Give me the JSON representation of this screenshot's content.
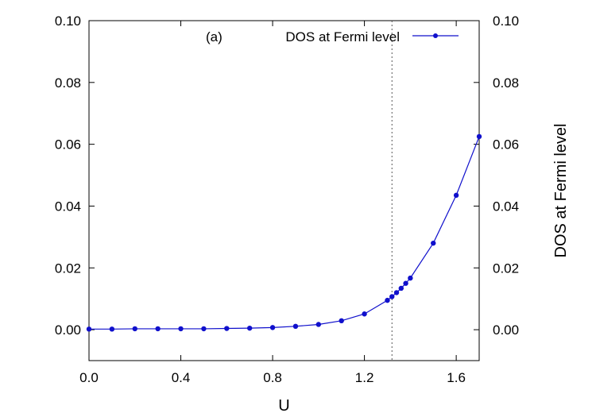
{
  "chart_data": {
    "type": "line",
    "panel_label": "(a)",
    "xlabel": "U",
    "ylabel_right": "DOS at Fermi level",
    "xlim": [
      0.0,
      1.7
    ],
    "ylim": [
      -0.01,
      0.1
    ],
    "x_ticks": [
      0.0,
      0.4,
      0.8,
      1.2,
      1.6
    ],
    "x_tick_labels": [
      "0.0",
      "0.4",
      "0.8",
      "1.2",
      "1.6"
    ],
    "y_ticks": [
      0.0,
      0.02,
      0.04,
      0.06,
      0.08,
      0.1
    ],
    "y_tick_labels": [
      "0.00",
      "0.02",
      "0.04",
      "0.06",
      "0.08",
      "0.10"
    ],
    "grid": false,
    "legend_position": "top-right",
    "reference_line": {
      "axis": "x",
      "value": 1.32,
      "style": "dotted"
    },
    "series": [
      {
        "name": "DOS at Fermi level",
        "color": "#1010cc",
        "marker": "circle",
        "x": [
          0.0,
          0.1,
          0.2,
          0.3,
          0.4,
          0.5,
          0.6,
          0.7,
          0.8,
          0.9,
          1.0,
          1.1,
          1.2,
          1.3,
          1.32,
          1.34,
          1.36,
          1.38,
          1.4,
          1.5,
          1.6,
          1.7
        ],
        "y": [
          0.0002,
          0.0002,
          0.0003,
          0.0003,
          0.0003,
          0.0003,
          0.0004,
          0.0005,
          0.0007,
          0.0011,
          0.0017,
          0.0029,
          0.0051,
          0.0095,
          0.0107,
          0.012,
          0.0134,
          0.015,
          0.0167,
          0.028,
          0.0435,
          0.0625
        ]
      }
    ]
  }
}
